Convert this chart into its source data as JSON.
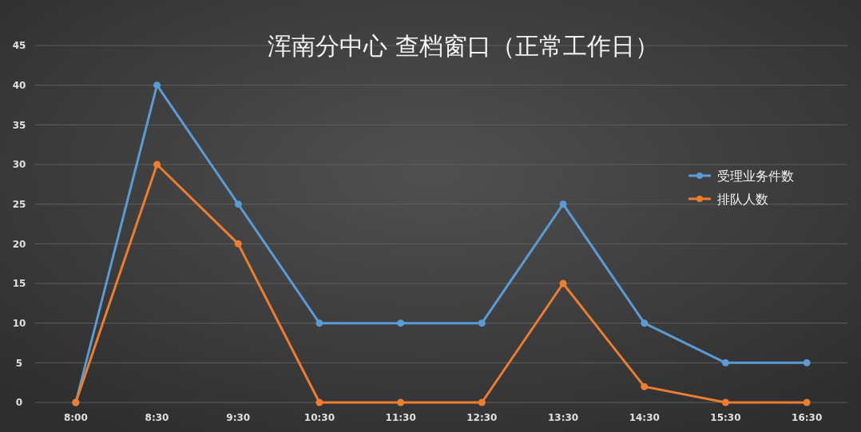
{
  "chart_data": {
    "type": "line",
    "title": "浑南分中心 查档窗口（正常工作日）",
    "categories": [
      "8:00",
      "8:30",
      "9:30",
      "10:30",
      "11:30",
      "12:30",
      "13:30",
      "14:30",
      "15:30",
      "16:30"
    ],
    "series": [
      {
        "name": "受理业务件数",
        "color": "#5b9bd5",
        "values": [
          0,
          40,
          25,
          10,
          10,
          10,
          25,
          10,
          5,
          5
        ]
      },
      {
        "name": "排队人数",
        "color": "#ed7d31",
        "values": [
          0,
          30,
          20,
          0,
          0,
          0,
          15,
          2,
          0,
          0
        ]
      }
    ],
    "ylim": [
      0,
      45
    ],
    "yticks": [
      0,
      5,
      10,
      15,
      20,
      25,
      30,
      35,
      40,
      45
    ],
    "grid": "y",
    "legend": "right",
    "marker": "circle",
    "line_style": "solid"
  }
}
